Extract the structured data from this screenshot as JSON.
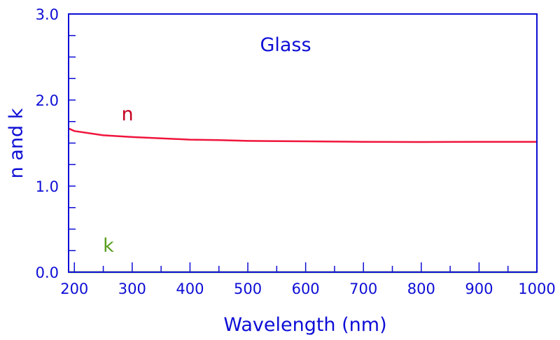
{
  "chart_data": {
    "type": "line",
    "title": "Glass",
    "xlabel": "Wavelength (nm)",
    "ylabel": "n and k",
    "xlim": [
      190,
      1000
    ],
    "ylim": [
      0,
      3
    ],
    "xticks": [
      "200",
      "300",
      "400",
      "500",
      "600",
      "700",
      "800",
      "900",
      "1000"
    ],
    "yticks": [
      "0.0",
      "1.0",
      "2.0",
      "3.0"
    ],
    "grid": false,
    "series": [
      {
        "name": "n",
        "color": "#f0143c",
        "label_color": "#c40020",
        "x": [
          190,
          200,
          250,
          300,
          350,
          400,
          450,
          500,
          600,
          700,
          800,
          900,
          1000
        ],
        "y": [
          1.67,
          1.64,
          1.59,
          1.57,
          1.555,
          1.54,
          1.535,
          1.525,
          1.52,
          1.515,
          1.512,
          1.515,
          1.515
        ]
      },
      {
        "name": "k",
        "color": "#5a9e1e",
        "label_color": "#5a9e1e",
        "x": [
          190,
          1000
        ],
        "y": [
          0,
          0
        ]
      }
    ],
    "colors": {
      "axis": "#0d0dd6",
      "title": "#0d0dd6"
    }
  }
}
